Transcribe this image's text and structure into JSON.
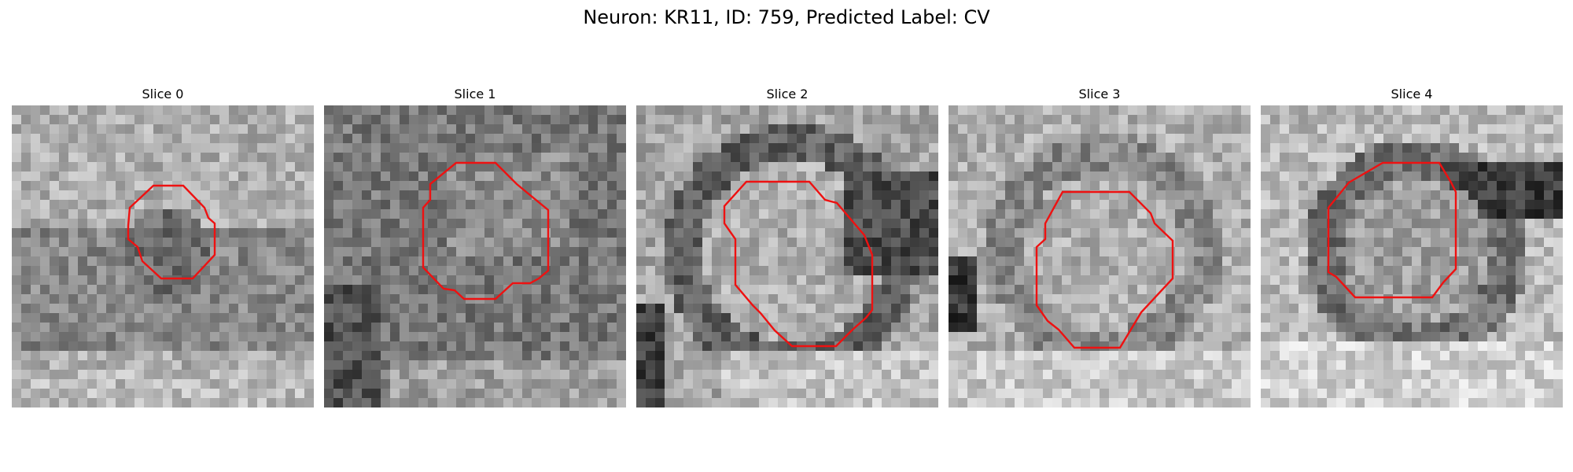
{
  "suptitle": "Neuron: KR11, ID: 759, Predicted Label: CV",
  "contour_color": "#ee1111",
  "panels": [
    {
      "title": "Slice 0",
      "seed": 11,
      "tone": "light",
      "dark_center": true
    },
    {
      "title": "Slice 1",
      "seed": 23,
      "tone": "dark",
      "dark_center": false
    },
    {
      "title": "Slice 2",
      "seed": 37,
      "tone": "ring",
      "dark_center": false
    },
    {
      "title": "Slice 3",
      "seed": 51,
      "tone": "ring_light",
      "dark_center": false
    },
    {
      "title": "Slice 4",
      "seed": 67,
      "tone": "ring_band",
      "dark_center": false
    }
  ]
}
